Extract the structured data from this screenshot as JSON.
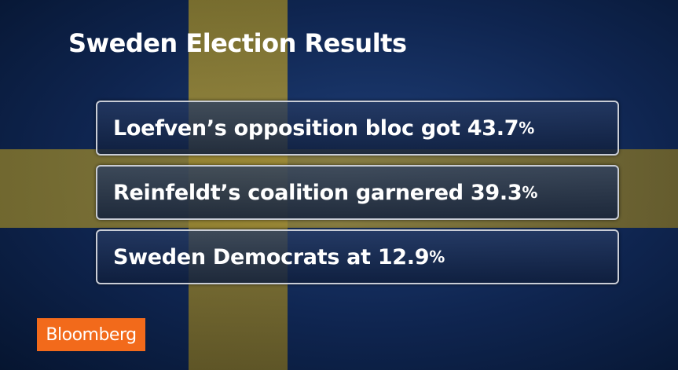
{
  "header": {
    "title": "Sweden Election Results"
  },
  "items": [
    {
      "text": "Loefven’s opposition bloc got 43.7",
      "unit": "%"
    },
    {
      "text": "Reinfeldt’s coalition garnered 39.3",
      "unit": "%"
    },
    {
      "text": "Sweden Democrats at 12.9",
      "unit": "%"
    }
  ],
  "logo": "Bloomberg"
}
